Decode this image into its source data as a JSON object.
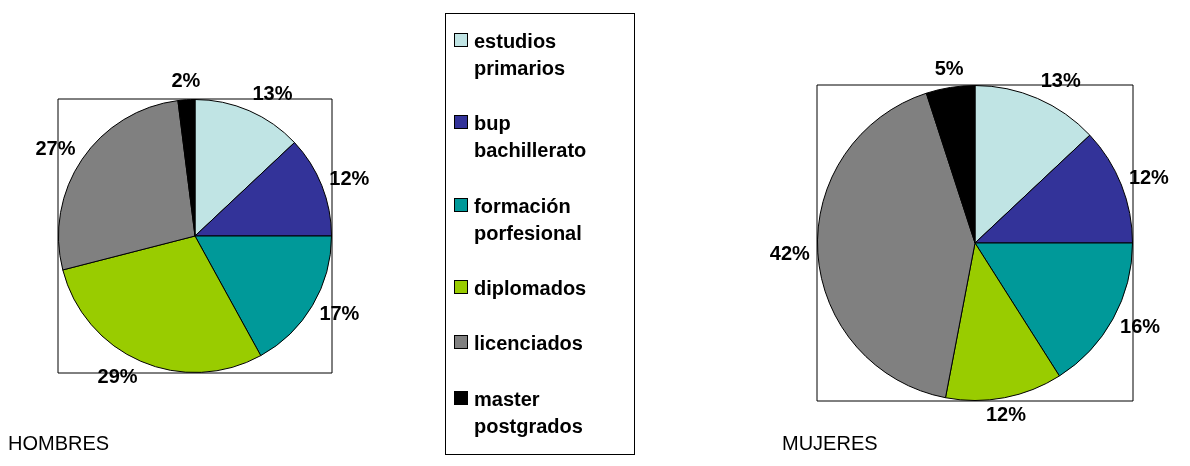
{
  "chart_data": [
    {
      "type": "pie",
      "title": "HOMBRES",
      "categories": [
        "estudios primarios",
        "bup bachillerato",
        "formación porfesional",
        "diplomados",
        "licenciados",
        "master postgrados"
      ],
      "values": [
        13,
        12,
        17,
        29,
        27,
        2
      ],
      "value_labels": [
        "13%",
        "12%",
        "17%",
        "29%",
        "27%",
        "2%"
      ],
      "colors": [
        "#c0e4e4",
        "#333399",
        "#009999",
        "#99cc00",
        "#808080",
        "#000000"
      ],
      "legend": "right"
    },
    {
      "type": "pie",
      "title": "MUJERES",
      "categories": [
        null,
        null,
        null,
        null,
        null,
        null
      ],
      "values": [
        13,
        12,
        16,
        12,
        42,
        5
      ],
      "value_labels": [
        "13%",
        "12%",
        "16%",
        "12%",
        "42%",
        "5%"
      ],
      "colors": [
        "#c0e4e4",
        "#333399",
        "#009999",
        "#99cc00",
        "#808080",
        "#000000"
      ],
      "legend": false
    }
  ]
}
